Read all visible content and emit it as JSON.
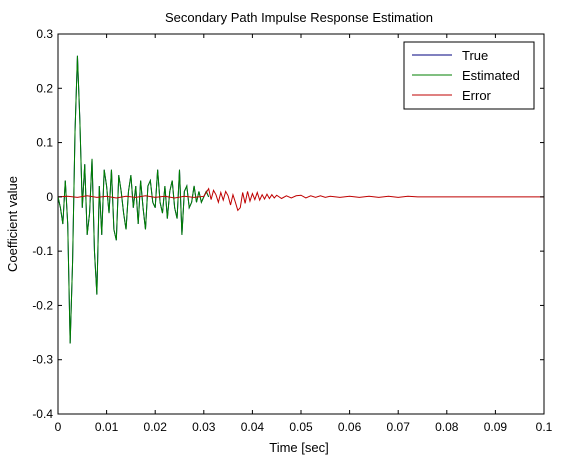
{
  "chart_data": {
    "type": "line",
    "title": "Secondary Path Impulse Response Estimation",
    "xlabel": "Time [sec]",
    "ylabel": "Coefficient value",
    "xlim": [
      0,
      0.1
    ],
    "ylim": [
      -0.4,
      0.3
    ],
    "x_ticks": [
      0,
      0.01,
      0.02,
      0.03,
      0.04,
      0.05,
      0.06,
      0.07,
      0.08,
      0.09,
      0.1
    ],
    "x_tick_labels": [
      "0",
      "0.01",
      "0.02",
      "0.03",
      "0.04",
      "0.05",
      "0.06",
      "0.07",
      "0.08",
      "0.09",
      "0.1"
    ],
    "y_ticks": [
      0.3,
      0.2,
      0.1,
      0,
      -0.1,
      -0.2,
      -0.3,
      -0.4
    ],
    "y_tick_labels": [
      "0.3",
      "0.2",
      "0.1",
      "0",
      "-0.1",
      "-0.2",
      "-0.3",
      "-0.4"
    ],
    "grid": false,
    "legend_position": "top-right",
    "series": [
      {
        "name": "True",
        "color": "#00007f",
        "x": [
          0,
          0.0005,
          0.001,
          0.0015,
          0.002,
          0.0025,
          0.003,
          0.0035,
          0.004,
          0.0045,
          0.005,
          0.0055,
          0.006,
          0.0065,
          0.007,
          0.0075,
          0.008,
          0.0085,
          0.009,
          0.0095,
          0.01,
          0.0105,
          0.011,
          0.0115,
          0.012,
          0.0125,
          0.013,
          0.0135,
          0.014,
          0.0145,
          0.015,
          0.0155,
          0.016,
          0.0165,
          0.017,
          0.0175,
          0.018,
          0.0185,
          0.019,
          0.0195,
          0.02,
          0.0205,
          0.021,
          0.0215,
          0.022,
          0.0225,
          0.023,
          0.0235,
          0.024,
          0.0245,
          0.025,
          0.0255,
          0.026,
          0.0265,
          0.027,
          0.0275,
          0.028,
          0.0285,
          0.029,
          0.0295,
          0.03,
          0.0305,
          0.031
        ],
        "y": [
          0,
          -0.02,
          -0.05,
          0.03,
          -0.05,
          -0.27,
          -0.12,
          0.12,
          0.26,
          0.14,
          -0.02,
          0.06,
          -0.07,
          -0.03,
          0.07,
          -0.1,
          -0.18,
          0.02,
          -0.07,
          0.05,
          0.02,
          -0.03,
          0.05,
          -0.06,
          -0.08,
          0.04,
          0.01,
          -0.03,
          -0.06,
          0.01,
          0.04,
          -0.02,
          0.02,
          -0.05,
          0.03,
          -0.02,
          -0.06,
          0.02,
          0.03,
          -0.01,
          -0.02,
          0.05,
          -0.01,
          -0.03,
          0.02,
          -0.04,
          0.01,
          0.03,
          -0.02,
          -0.04,
          0.05,
          -0.07,
          0.01,
          0.02,
          -0.02,
          -0.01,
          0.02,
          -0.01,
          0.01,
          -0.01,
          0.0,
          0.01,
          0.0
        ]
      },
      {
        "name": "Estimated",
        "color": "#007f00",
        "x": [
          0,
          0.0005,
          0.001,
          0.0015,
          0.002,
          0.0025,
          0.003,
          0.0035,
          0.004,
          0.0045,
          0.005,
          0.0055,
          0.006,
          0.0065,
          0.007,
          0.0075,
          0.008,
          0.0085,
          0.009,
          0.0095,
          0.01,
          0.0105,
          0.011,
          0.0115,
          0.012,
          0.0125,
          0.013,
          0.0135,
          0.014,
          0.0145,
          0.015,
          0.0155,
          0.016,
          0.0165,
          0.017,
          0.0175,
          0.018,
          0.0185,
          0.019,
          0.0195,
          0.02,
          0.0205,
          0.021,
          0.0215,
          0.022,
          0.0225,
          0.023,
          0.0235,
          0.024,
          0.0245,
          0.025,
          0.0255,
          0.026,
          0.0265,
          0.027,
          0.0275,
          0.028,
          0.0285,
          0.029,
          0.0295,
          0.03,
          0.0305,
          0.031
        ],
        "y": [
          0,
          -0.02,
          -0.05,
          0.03,
          -0.05,
          -0.27,
          -0.12,
          0.12,
          0.26,
          0.14,
          -0.02,
          0.06,
          -0.07,
          -0.03,
          0.07,
          -0.1,
          -0.18,
          0.02,
          -0.07,
          0.05,
          0.02,
          -0.03,
          0.05,
          -0.06,
          -0.08,
          0.04,
          0.01,
          -0.03,
          -0.06,
          0.01,
          0.04,
          -0.02,
          0.02,
          -0.05,
          0.03,
          -0.02,
          -0.06,
          0.02,
          0.03,
          -0.01,
          -0.02,
          0.05,
          -0.01,
          -0.03,
          0.02,
          -0.04,
          0.01,
          0.03,
          -0.02,
          -0.04,
          0.05,
          -0.07,
          0.01,
          0.02,
          -0.02,
          -0.01,
          0.02,
          -0.01,
          0.01,
          -0.01,
          0.0,
          0.01,
          0.0
        ]
      },
      {
        "name": "Error",
        "color": "#bf0000",
        "x": [
          0,
          0.002,
          0.004,
          0.006,
          0.008,
          0.01,
          0.012,
          0.014,
          0.016,
          0.018,
          0.02,
          0.022,
          0.024,
          0.026,
          0.028,
          0.03,
          0.031,
          0.0315,
          0.032,
          0.0325,
          0.033,
          0.0335,
          0.034,
          0.0345,
          0.035,
          0.0355,
          0.036,
          0.0365,
          0.037,
          0.0375,
          0.038,
          0.0385,
          0.039,
          0.0395,
          0.04,
          0.0405,
          0.041,
          0.0415,
          0.042,
          0.0425,
          0.043,
          0.0435,
          0.044,
          0.0445,
          0.045,
          0.046,
          0.047,
          0.048,
          0.049,
          0.05,
          0.051,
          0.052,
          0.053,
          0.054,
          0.055,
          0.056,
          0.058,
          0.06,
          0.062,
          0.064,
          0.066,
          0.068,
          0.07,
          0.072,
          0.074,
          0.08,
          0.09,
          0.1
        ],
        "y": [
          0,
          0.001,
          -0.001,
          0.002,
          -0.001,
          0.001,
          -0.002,
          0.001,
          -0.001,
          0.002,
          -0.001,
          0.001,
          -0.002,
          0.001,
          -0.001,
          0.001,
          0.015,
          -0.005,
          0.012,
          0.004,
          -0.01,
          0.008,
          -0.006,
          0.01,
          0.002,
          -0.015,
          0.004,
          -0.01,
          -0.025,
          -0.02,
          0.008,
          -0.012,
          0.01,
          -0.008,
          0.006,
          -0.005,
          0.008,
          -0.006,
          0.004,
          -0.004,
          0.005,
          -0.003,
          0.004,
          -0.002,
          0.003,
          -0.003,
          0.002,
          -0.002,
          0.002,
          0.003,
          -0.002,
          0.002,
          -0.001,
          0.002,
          -0.001,
          0.001,
          -0.001,
          0.001,
          -0.001,
          0.001,
          -0.001,
          0.001,
          -0.001,
          0.001,
          0.0,
          0.0,
          0.0,
          0.0
        ]
      }
    ]
  }
}
